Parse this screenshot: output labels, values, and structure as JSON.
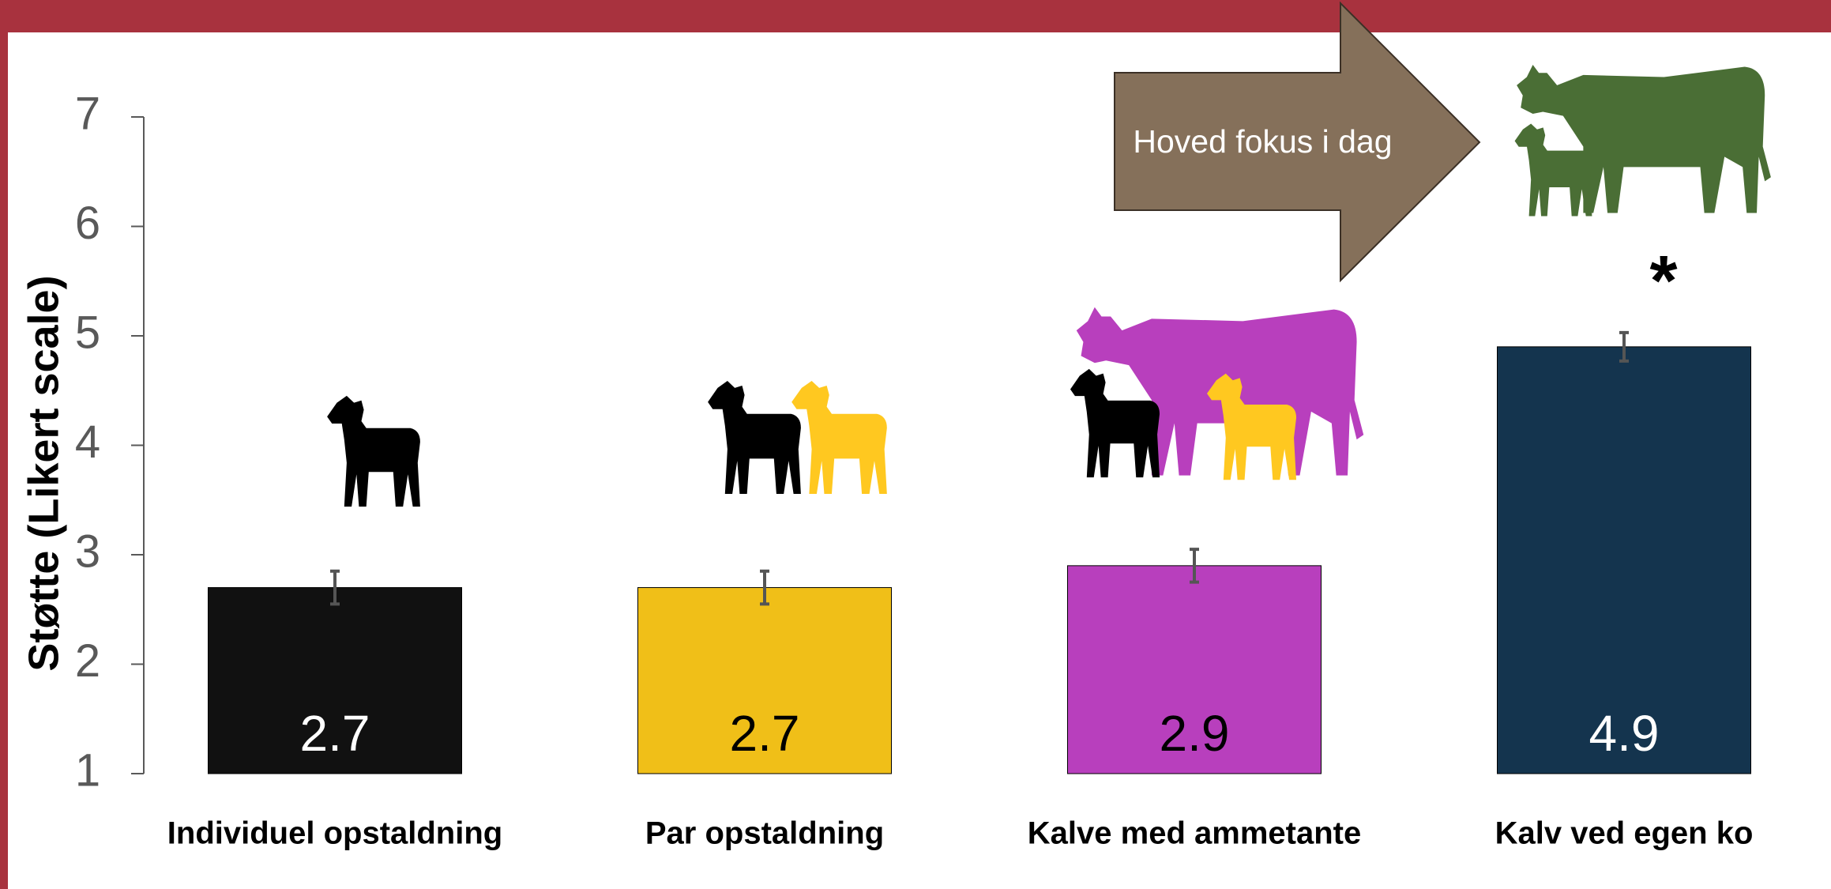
{
  "chart_data": {
    "type": "bar",
    "y_label": "Støtte (Likert scale)",
    "categories": [
      "Individuel opstaldning",
      "Par opstaldning",
      "Kalve med ammetante",
      "Kalv ved egen ko"
    ],
    "values": [
      2.7,
      2.7,
      2.9,
      4.9
    ],
    "errors": [
      0.15,
      0.15,
      0.15,
      0.13
    ],
    "colors": [
      "#111111",
      "#f0bf18",
      "#b83fbd",
      "#14344e"
    ],
    "value_label_colors": [
      "#ffffff",
      "#000000",
      "#000000",
      "#ffffff"
    ],
    "error_color": "#555555",
    "ylim": [
      1,
      7
    ],
    "yticks": [
      1,
      2,
      3,
      4,
      5,
      6,
      7
    ],
    "annotations": [
      "Hoved fokus i dag",
      "*"
    ]
  }
}
